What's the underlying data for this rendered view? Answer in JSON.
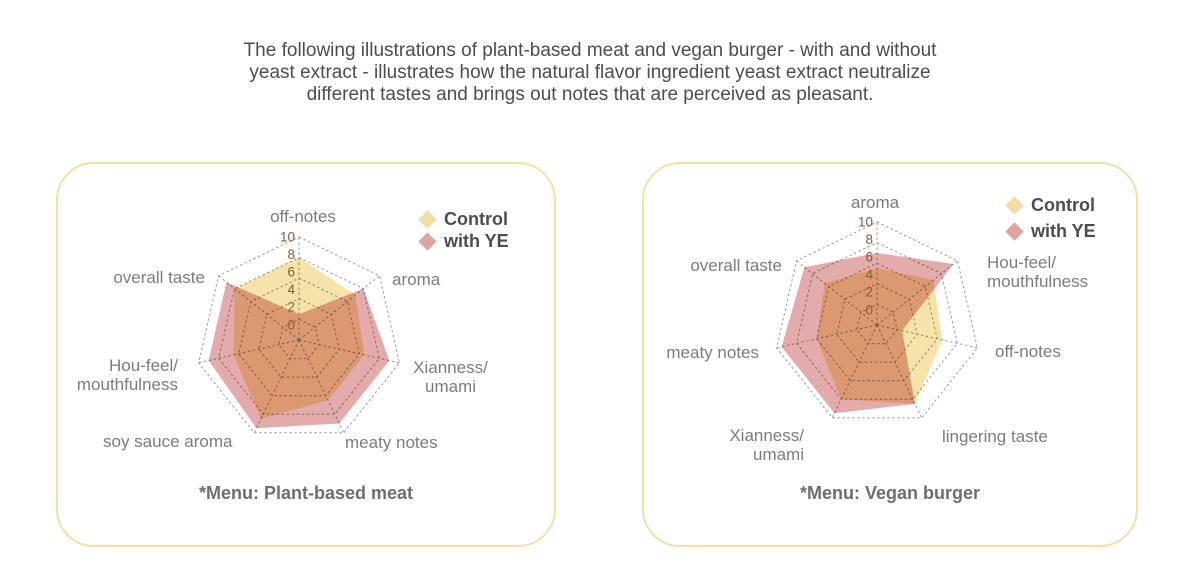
{
  "title": "The following illustrations of plant-based meat and vegan burger - with and without\nyeast extract - illustrates how the natural flavor ingredient yeast extract neutralize\ndifferent tastes and brings out notes that are perceived as pleasant.",
  "colors": {
    "control_fill": "#f6e3a9",
    "with_ye_fill": "#e3abab",
    "control_legend": "#f3dda6",
    "with_ye_legend": "#dfa3a2",
    "grid": "#9a9a9a",
    "tick_text": "#8a5a33",
    "card_border": "#f3dfa5"
  },
  "chart_data": [
    {
      "type": "radar",
      "title": "*Menu: Plant-based meat",
      "categories": [
        "off-notes",
        "aroma",
        "Xianness/umami",
        "meaty notes",
        "soy sauce aroma",
        "Hou-feel/mouthfulness",
        "overall taste"
      ],
      "axis_display": [
        "off-notes",
        "aroma",
        "Xianness/\numami",
        "meaty notes",
        "soy sauce aroma",
        "Hou-feel/\nmouthfulness",
        "overall taste"
      ],
      "series": [
        {
          "name": "Control",
          "values": [
            8,
            7,
            6.5,
            6.5,
            8.5,
            6.5,
            8
          ]
        },
        {
          "name": "with YE",
          "values": [
            2.5,
            8,
            9,
            9,
            9.5,
            9,
            9
          ]
        }
      ],
      "rlim": [
        0,
        10
      ],
      "ticks": [
        0,
        2,
        4,
        6,
        8,
        10
      ],
      "tick_labels": [
        "0",
        "2",
        "4",
        "6",
        "8",
        "10"
      ],
      "grid_style": "dashed",
      "legend_position": "top-right"
    },
    {
      "type": "radar",
      "title": "*Menu: Vegan burger",
      "categories": [
        "aroma",
        "Hou-feel/mouthfulness",
        "off-notes",
        "lingering taste",
        "Xianness/umami",
        "meaty notes",
        "overall taste"
      ],
      "axis_display": [
        "aroma",
        "Hou-feel/\nmouthfulness",
        "off-notes",
        "lingering taste",
        "Xianness/\numami",
        "meaty notes",
        "overall taste"
      ],
      "series": [
        {
          "name": "Control",
          "values": [
            5.5,
            7,
            6.5,
            8.5,
            8,
            6,
            6.5
          ]
        },
        {
          "name": "with YE",
          "values": [
            7,
            9.5,
            2.5,
            8.5,
            9.5,
            9.5,
            9
          ]
        }
      ],
      "rlim": [
        0,
        10
      ],
      "ticks": [
        0,
        2,
        4,
        6,
        8,
        10
      ],
      "tick_labels": [
        "0",
        "2",
        "4",
        "6",
        "8",
        "10"
      ],
      "grid_style": "dashed",
      "legend_position": "top-right"
    }
  ]
}
